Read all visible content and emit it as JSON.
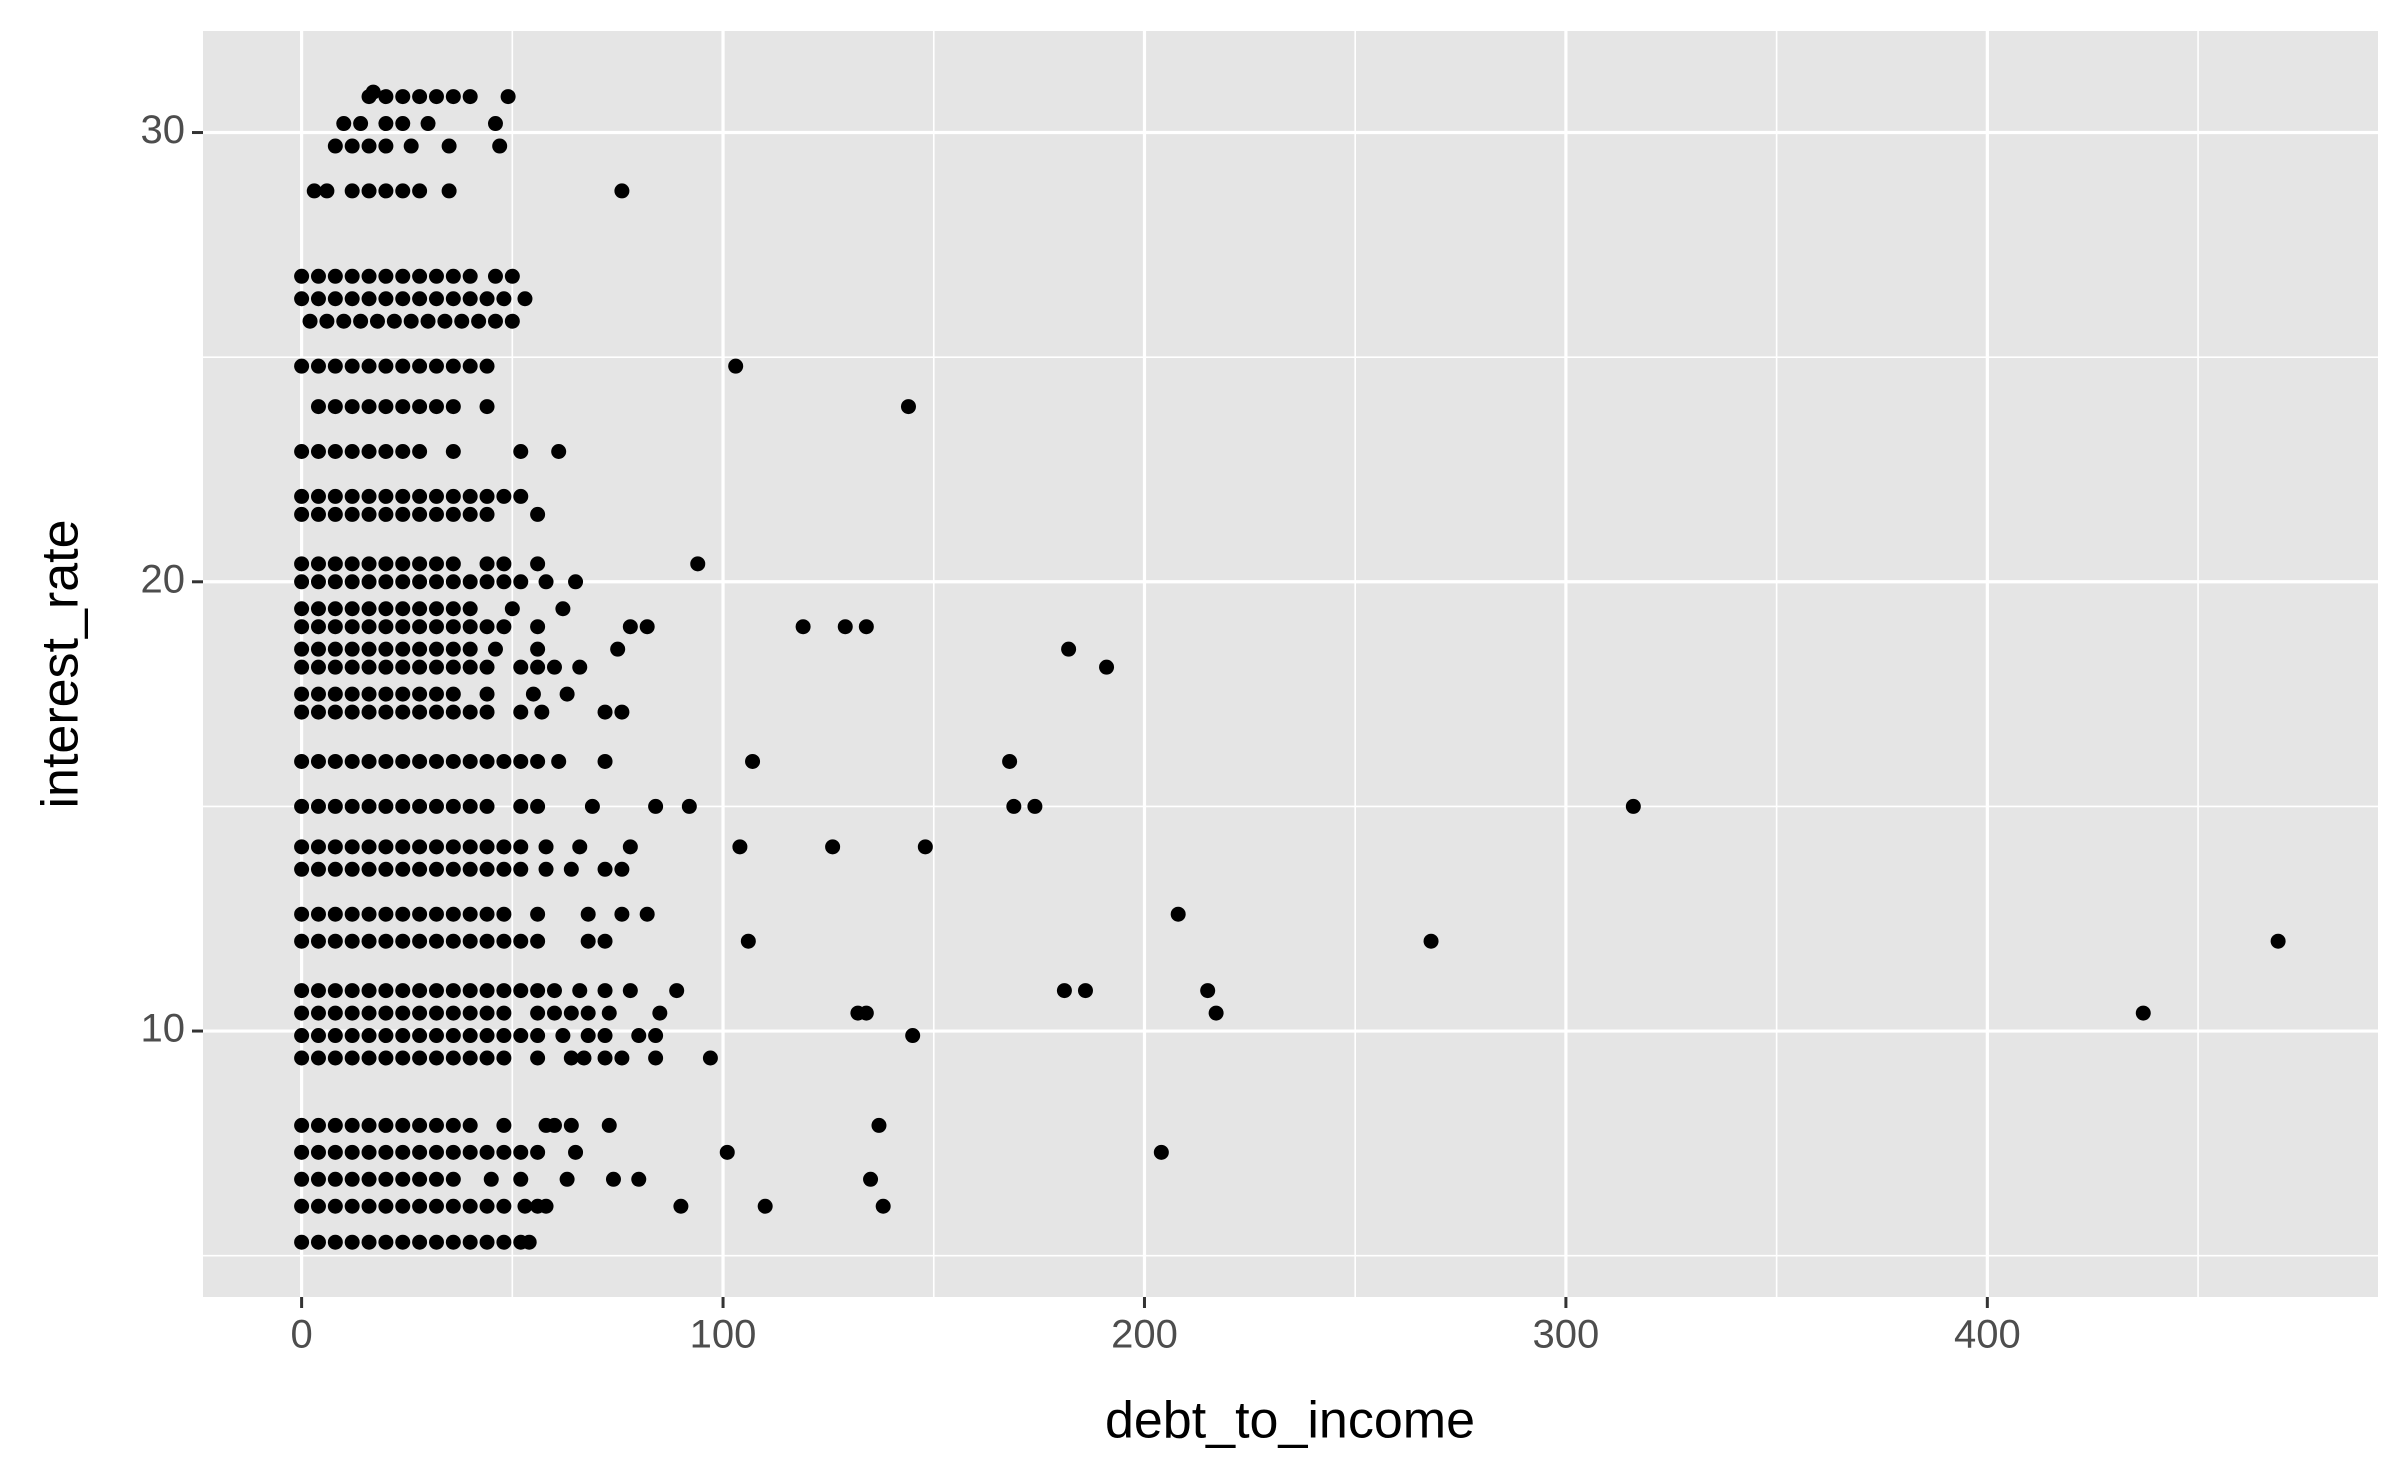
{
  "chart_data": {
    "type": "scatter",
    "x_label": "debt_to_income",
    "y_label": "interest_rate",
    "xlim": [
      -23.4,
      492.7
    ],
    "ylim": [
      4.08,
      32.26
    ],
    "xticks": [
      0,
      100,
      200,
      300,
      400
    ],
    "yticks": [
      10,
      20,
      30
    ],
    "grid": true,
    "minor_grid": true,
    "color": "#000000",
    "panel_color": "#e5e5e5",
    "x": [
      0,
      4,
      8,
      12,
      16,
      20,
      24,
      28,
      32,
      36,
      40,
      44,
      48,
      52,
      54,
      0,
      4,
      8,
      12,
      16,
      20,
      24,
      28,
      32,
      36,
      40,
      44,
      48,
      53,
      56,
      58,
      90,
      110,
      138,
      0,
      4,
      8,
      12,
      16,
      20,
      24,
      28,
      32,
      36,
      45,
      52,
      63,
      74,
      80,
      135,
      0,
      4,
      8,
      12,
      16,
      20,
      24,
      28,
      32,
      36,
      40,
      44,
      48,
      52,
      56,
      65,
      101,
      204,
      0,
      4,
      8,
      12,
      16,
      20,
      24,
      28,
      32,
      36,
      40,
      48,
      58,
      60,
      64,
      73,
      137,
      0,
      4,
      8,
      12,
      16,
      20,
      24,
      28,
      32,
      36,
      40,
      44,
      48,
      56,
      64,
      67,
      72,
      76,
      84,
      97,
      0,
      4,
      8,
      12,
      16,
      20,
      24,
      28,
      32,
      36,
      40,
      44,
      48,
      52,
      56,
      62,
      68,
      72,
      80,
      84,
      145,
      0,
      4,
      8,
      12,
      16,
      20,
      24,
      28,
      32,
      36,
      40,
      44,
      48,
      56,
      60,
      64,
      68,
      73,
      85,
      132,
      134,
      217,
      437,
      0,
      4,
      8,
      12,
      16,
      20,
      24,
      28,
      32,
      36,
      40,
      44,
      48,
      52,
      56,
      60,
      66,
      72,
      78,
      89,
      181,
      186,
      215,
      0,
      4,
      8,
      12,
      16,
      20,
      24,
      28,
      32,
      36,
      40,
      44,
      48,
      52,
      56,
      68,
      72,
      106,
      268,
      469,
      0,
      4,
      8,
      12,
      16,
      20,
      24,
      28,
      32,
      36,
      40,
      44,
      48,
      56,
      68,
      76,
      82,
      208,
      0,
      4,
      8,
      12,
      16,
      20,
      24,
      28,
      32,
      36,
      40,
      44,
      48,
      52,
      58,
      64,
      72,
      76,
      0,
      4,
      8,
      12,
      16,
      20,
      24,
      28,
      32,
      36,
      40,
      44,
      48,
      52,
      58,
      66,
      78,
      104,
      126,
      148,
      0,
      4,
      8,
      12,
      16,
      20,
      24,
      28,
      32,
      36,
      40,
      44,
      52,
      56,
      69,
      84,
      92,
      169,
      174,
      316,
      0,
      4,
      8,
      12,
      16,
      20,
      24,
      28,
      32,
      36,
      40,
      44,
      48,
      52,
      56,
      61,
      72,
      107,
      168,
      0,
      4,
      8,
      12,
      16,
      20,
      24,
      28,
      32,
      36,
      40,
      44,
      52,
      57,
      72,
      76,
      0,
      4,
      8,
      12,
      16,
      20,
      24,
      28,
      32,
      36,
      44,
      55,
      63,
      0,
      4,
      8,
      12,
      16,
      20,
      24,
      28,
      32,
      36,
      40,
      44,
      52,
      56,
      60,
      66,
      191,
      0,
      4,
      8,
      12,
      16,
      20,
      24,
      28,
      32,
      36,
      40,
      46,
      56,
      75,
      182,
      0,
      4,
      8,
      12,
      16,
      20,
      24,
      28,
      32,
      36,
      40,
      44,
      48,
      56,
      78,
      82,
      119,
      129,
      134,
      0,
      4,
      8,
      12,
      16,
      20,
      24,
      28,
      32,
      36,
      40,
      50,
      62,
      0,
      4,
      8,
      12,
      16,
      20,
      24,
      28,
      32,
      36,
      40,
      44,
      48,
      52,
      58,
      65,
      0,
      4,
      8,
      12,
      16,
      20,
      24,
      28,
      32,
      36,
      44,
      48,
      56,
      94,
      0,
      4,
      8,
      12,
      16,
      20,
      24,
      28,
      32,
      36,
      40,
      44,
      56,
      0,
      4,
      8,
      12,
      16,
      20,
      24,
      28,
      32,
      36,
      40,
      44,
      48,
      52,
      0,
      4,
      8,
      12,
      16,
      20,
      24,
      28,
      36,
      52,
      61,
      4,
      8,
      12,
      16,
      20,
      24,
      28,
      32,
      36,
      44,
      144,
      0,
      4,
      8,
      12,
      16,
      20,
      24,
      28,
      32,
      36,
      40,
      44,
      103,
      2,
      6,
      10,
      14,
      18,
      22,
      26,
      30,
      34,
      38,
      42,
      46,
      50,
      0,
      4,
      8,
      12,
      16,
      20,
      24,
      28,
      32,
      36,
      40,
      44,
      48,
      53,
      0,
      4,
      8,
      12,
      16,
      20,
      24,
      28,
      32,
      36,
      40,
      46,
      50,
      3,
      6,
      12,
      16,
      20,
      24,
      28,
      35,
      76,
      8,
      12,
      16,
      20,
      26,
      35,
      47,
      10,
      14,
      20,
      24,
      30,
      46,
      16,
      20,
      24,
      28,
      32,
      36,
      40,
      49,
      17
    ],
    "values": [
      5.3,
      5.3,
      5.3,
      5.3,
      5.3,
      5.3,
      5.3,
      5.3,
      5.3,
      5.3,
      5.3,
      5.3,
      5.3,
      5.3,
      5.3,
      6.1,
      6.1,
      6.1,
      6.1,
      6.1,
      6.1,
      6.1,
      6.1,
      6.1,
      6.1,
      6.1,
      6.1,
      6.1,
      6.1,
      6.1,
      6.1,
      6.1,
      6.1,
      6.1,
      6.7,
      6.7,
      6.7,
      6.7,
      6.7,
      6.7,
      6.7,
      6.7,
      6.7,
      6.7,
      6.7,
      6.7,
      6.7,
      6.7,
      6.7,
      6.7,
      7.3,
      7.3,
      7.3,
      7.3,
      7.3,
      7.3,
      7.3,
      7.3,
      7.3,
      7.3,
      7.3,
      7.3,
      7.3,
      7.3,
      7.3,
      7.3,
      7.3,
      7.3,
      7.9,
      7.9,
      7.9,
      7.9,
      7.9,
      7.9,
      7.9,
      7.9,
      7.9,
      7.9,
      7.9,
      7.9,
      7.9,
      7.9,
      7.9,
      7.9,
      7.9,
      9.4,
      9.4,
      9.4,
      9.4,
      9.4,
      9.4,
      9.4,
      9.4,
      9.4,
      9.4,
      9.4,
      9.4,
      9.4,
      9.4,
      9.4,
      9.4,
      9.4,
      9.4,
      9.4,
      9.4,
      9.9,
      9.9,
      9.9,
      9.9,
      9.9,
      9.9,
      9.9,
      9.9,
      9.9,
      9.9,
      9.9,
      9.9,
      9.9,
      9.9,
      9.9,
      9.9,
      9.9,
      9.9,
      9.9,
      9.9,
      9.9,
      10.4,
      10.4,
      10.4,
      10.4,
      10.4,
      10.4,
      10.4,
      10.4,
      10.4,
      10.4,
      10.4,
      10.4,
      10.4,
      10.4,
      10.4,
      10.4,
      10.4,
      10.4,
      10.4,
      10.4,
      10.4,
      10.4,
      10.4,
      10.9,
      10.9,
      10.9,
      10.9,
      10.9,
      10.9,
      10.9,
      10.9,
      10.9,
      10.9,
      10.9,
      10.9,
      10.9,
      10.9,
      10.9,
      10.9,
      10.9,
      10.9,
      10.9,
      10.9,
      10.9,
      10.9,
      10.9,
      12.0,
      12.0,
      12.0,
      12.0,
      12.0,
      12.0,
      12.0,
      12.0,
      12.0,
      12.0,
      12.0,
      12.0,
      12.0,
      12.0,
      12.0,
      12.0,
      12.0,
      12.0,
      12.0,
      12.0,
      12.6,
      12.6,
      12.6,
      12.6,
      12.6,
      12.6,
      12.6,
      12.6,
      12.6,
      12.6,
      12.6,
      12.6,
      12.6,
      12.6,
      12.6,
      12.6,
      12.6,
      12.6,
      13.6,
      13.6,
      13.6,
      13.6,
      13.6,
      13.6,
      13.6,
      13.6,
      13.6,
      13.6,
      13.6,
      13.6,
      13.6,
      13.6,
      13.6,
      13.6,
      13.6,
      13.6,
      14.1,
      14.1,
      14.1,
      14.1,
      14.1,
      14.1,
      14.1,
      14.1,
      14.1,
      14.1,
      14.1,
      14.1,
      14.1,
      14.1,
      14.1,
      14.1,
      14.1,
      14.1,
      14.1,
      14.1,
      15.0,
      15.0,
      15.0,
      15.0,
      15.0,
      15.0,
      15.0,
      15.0,
      15.0,
      15.0,
      15.0,
      15.0,
      15.0,
      15.0,
      15.0,
      15.0,
      15.0,
      15.0,
      15.0,
      15.0,
      16.0,
      16.0,
      16.0,
      16.0,
      16.0,
      16.0,
      16.0,
      16.0,
      16.0,
      16.0,
      16.0,
      16.0,
      16.0,
      16.0,
      16.0,
      16.0,
      16.0,
      16.0,
      16.0,
      17.1,
      17.1,
      17.1,
      17.1,
      17.1,
      17.1,
      17.1,
      17.1,
      17.1,
      17.1,
      17.1,
      17.1,
      17.1,
      17.1,
      17.1,
      17.1,
      17.5,
      17.5,
      17.5,
      17.5,
      17.5,
      17.5,
      17.5,
      17.5,
      17.5,
      17.5,
      17.5,
      17.5,
      17.5,
      18.1,
      18.1,
      18.1,
      18.1,
      18.1,
      18.1,
      18.1,
      18.1,
      18.1,
      18.1,
      18.1,
      18.1,
      18.1,
      18.1,
      18.1,
      18.1,
      18.1,
      18.5,
      18.5,
      18.5,
      18.5,
      18.5,
      18.5,
      18.5,
      18.5,
      18.5,
      18.5,
      18.5,
      18.5,
      18.5,
      18.5,
      18.5,
      19.0,
      19.0,
      19.0,
      19.0,
      19.0,
      19.0,
      19.0,
      19.0,
      19.0,
      19.0,
      19.0,
      19.0,
      19.0,
      19.0,
      19.0,
      19.0,
      19.0,
      19.0,
      19.0,
      19.4,
      19.4,
      19.4,
      19.4,
      19.4,
      19.4,
      19.4,
      19.4,
      19.4,
      19.4,
      19.4,
      19.4,
      19.4,
      20.0,
      20.0,
      20.0,
      20.0,
      20.0,
      20.0,
      20.0,
      20.0,
      20.0,
      20.0,
      20.0,
      20.0,
      20.0,
      20.0,
      20.0,
      20.0,
      20.4,
      20.4,
      20.4,
      20.4,
      20.4,
      20.4,
      20.4,
      20.4,
      20.4,
      20.4,
      20.4,
      20.4,
      20.4,
      20.4,
      21.5,
      21.5,
      21.5,
      21.5,
      21.5,
      21.5,
      21.5,
      21.5,
      21.5,
      21.5,
      21.5,
      21.5,
      21.5,
      21.9,
      21.9,
      21.9,
      21.9,
      21.9,
      21.9,
      21.9,
      21.9,
      21.9,
      21.9,
      21.9,
      21.9,
      21.9,
      21.9,
      22.9,
      22.9,
      22.9,
      22.9,
      22.9,
      22.9,
      22.9,
      22.9,
      22.9,
      22.9,
      22.9,
      23.9,
      23.9,
      23.9,
      23.9,
      23.9,
      23.9,
      23.9,
      23.9,
      23.9,
      23.9,
      23.9,
      24.8,
      24.8,
      24.8,
      24.8,
      24.8,
      24.8,
      24.8,
      24.8,
      24.8,
      24.8,
      24.8,
      24.8,
      24.8,
      25.8,
      25.8,
      25.8,
      25.8,
      25.8,
      25.8,
      25.8,
      25.8,
      25.8,
      25.8,
      25.8,
      25.8,
      25.8,
      26.3,
      26.3,
      26.3,
      26.3,
      26.3,
      26.3,
      26.3,
      26.3,
      26.3,
      26.3,
      26.3,
      26.3,
      26.3,
      26.3,
      26.8,
      26.8,
      26.8,
      26.8,
      26.8,
      26.8,
      26.8,
      26.8,
      26.8,
      26.8,
      26.8,
      26.8,
      26.8,
      28.7,
      28.7,
      28.7,
      28.7,
      28.7,
      28.7,
      28.7,
      28.7,
      28.7,
      29.7,
      29.7,
      29.7,
      29.7,
      29.7,
      29.7,
      29.7,
      30.2,
      30.2,
      30.2,
      30.2,
      30.2,
      30.2,
      30.8,
      30.8,
      30.8,
      30.8,
      30.8,
      30.8,
      30.8,
      30.8,
      30.9
    ]
  }
}
